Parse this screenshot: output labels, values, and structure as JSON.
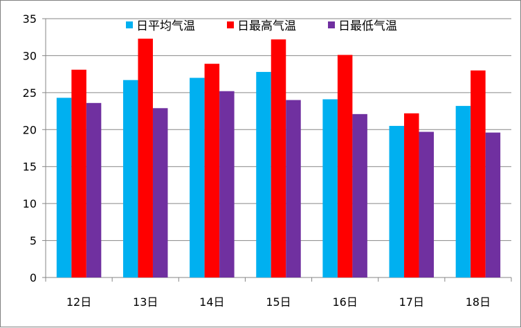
{
  "chart_data": {
    "type": "bar",
    "categories": [
      "12日",
      "13日",
      "14日",
      "15日",
      "16日",
      "17日",
      "18日"
    ],
    "series": [
      {
        "name": "日平均气温",
        "color": "#00B0F0",
        "values": [
          24.3,
          26.7,
          27.0,
          27.8,
          24.1,
          20.5,
          23.2
        ]
      },
      {
        "name": "日最高气温",
        "color": "#FF0000",
        "values": [
          28.1,
          32.3,
          28.9,
          32.2,
          30.1,
          22.2,
          28.0
        ]
      },
      {
        "name": "日最低气温",
        "color": "#7030A0",
        "values": [
          23.6,
          22.9,
          25.2,
          24.0,
          22.1,
          19.7,
          19.6
        ]
      }
    ],
    "ylim": [
      0,
      35
    ],
    "yticks": [
      "0",
      "5",
      "10",
      "15",
      "20",
      "25",
      "30",
      "35"
    ],
    "legend_position": "top",
    "grid": true
  }
}
